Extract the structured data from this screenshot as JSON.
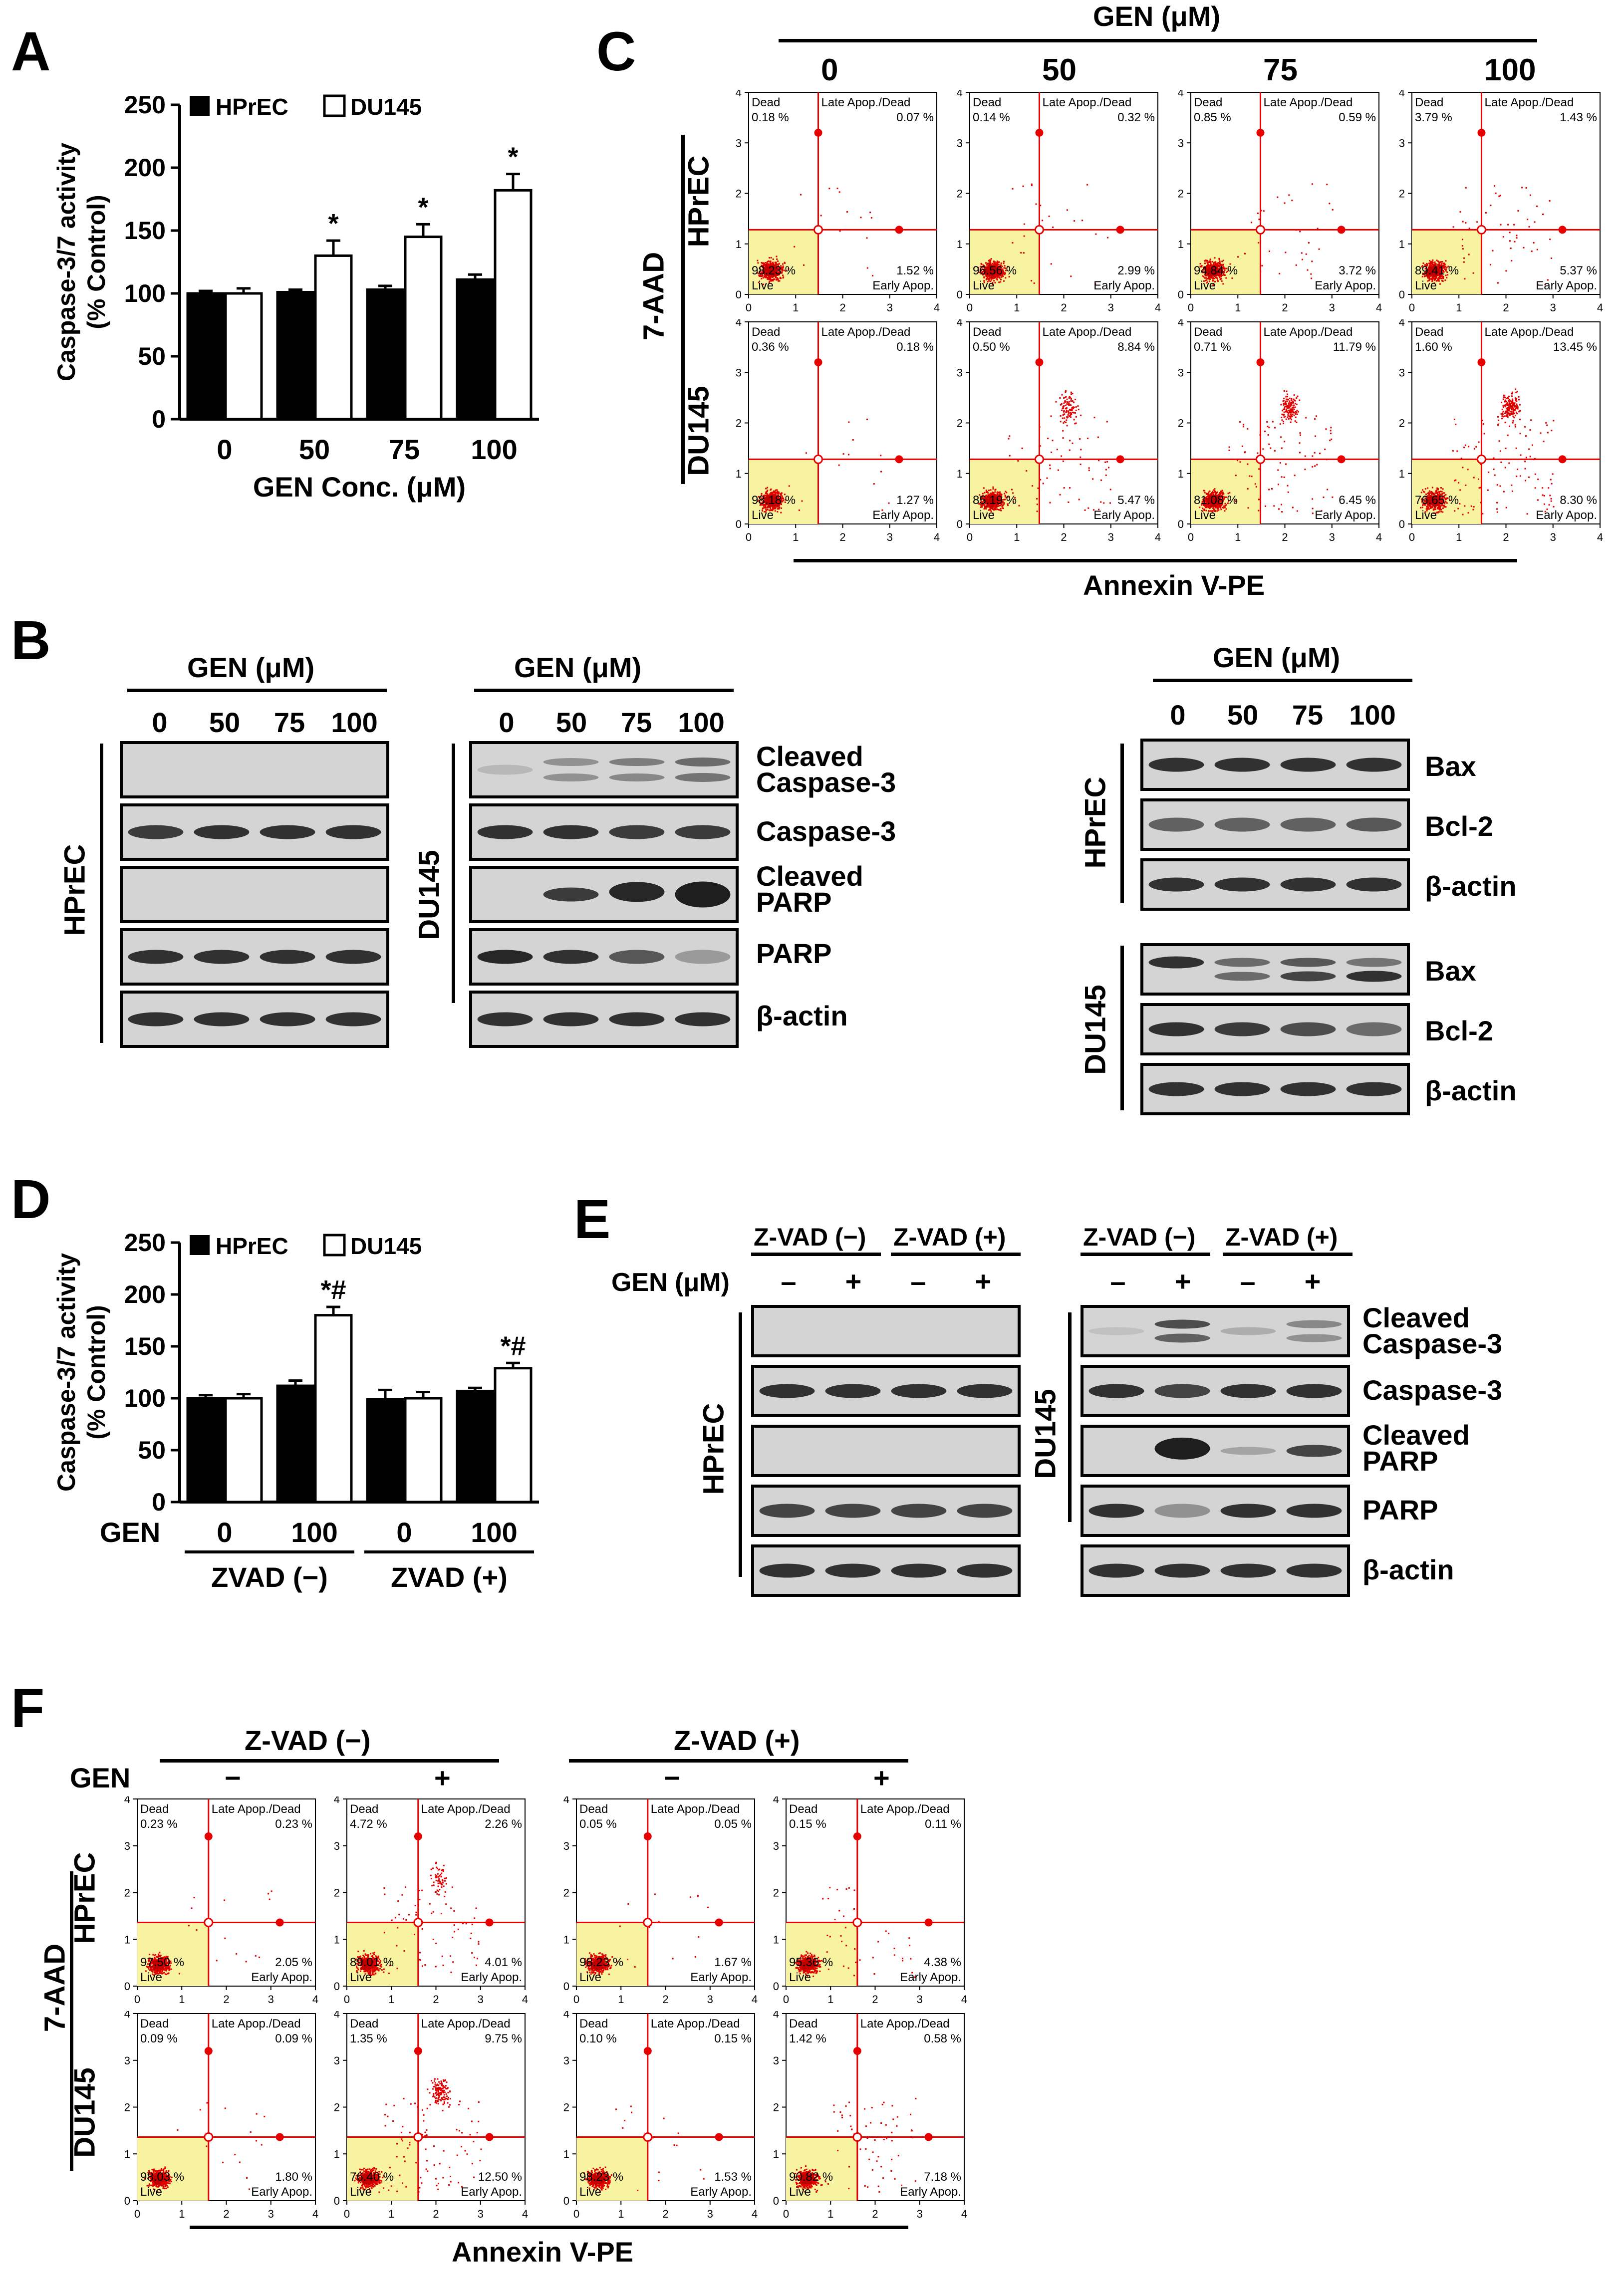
{
  "panels": {
    "A": "A",
    "B": "B",
    "C": "C",
    "D": "D",
    "E": "E",
    "F": "F"
  },
  "colors": {
    "hprec": "#000000",
    "du145": "#ffffff",
    "gate_line": "#e60000",
    "live_gate": "#f7f3a0",
    "dots": "#e00000"
  },
  "chart_data": [
    {
      "id": "A",
      "type": "bar",
      "ylabel": "Caspase-3/7 activity (% Control)",
      "ylabel_line1": "Caspase-3/7 activity",
      "ylabel_line2": "(% Control)",
      "xlabel": "GEN Conc. (μM)",
      "categories": [
        "0",
        "50",
        "75",
        "100"
      ],
      "ylim": [
        0,
        250
      ],
      "yticks": [
        "0",
        "50",
        "100",
        "150",
        "200",
        "250"
      ],
      "series": [
        {
          "name": "HPrEC",
          "values": [
            100,
            101,
            103,
            111
          ],
          "errors": [
            2,
            2,
            3,
            4
          ]
        },
        {
          "name": "DU145",
          "values": [
            100,
            130,
            145,
            182
          ],
          "errors": [
            4,
            12,
            10,
            13
          ]
        }
      ],
      "annotations": [
        "",
        "*",
        "*",
        "*"
      ]
    },
    {
      "id": "D",
      "type": "bar",
      "ylabel": "Caspase-3/7 activity (% Control)",
      "ylabel_line1": "Caspase-3/7 activity",
      "ylabel_line2": "(% Control)",
      "xlabel_prefix": "GEN",
      "categories": [
        "0",
        "100",
        "0",
        "100"
      ],
      "groups": [
        "ZVAD (−)",
        "ZVAD (+)"
      ],
      "ylim": [
        0,
        250
      ],
      "yticks": [
        "0",
        "50",
        "100",
        "150",
        "200",
        "250"
      ],
      "series": [
        {
          "name": "HPrEC",
          "values": [
            100,
            112,
            99,
            107
          ],
          "errors": [
            3,
            5,
            9,
            3
          ]
        },
        {
          "name": "DU145",
          "values": [
            100,
            180,
            100,
            129
          ],
          "errors": [
            4,
            8,
            6,
            5
          ]
        }
      ],
      "annotations": [
        "",
        "*#",
        "",
        "*#"
      ]
    },
    {
      "id": "C",
      "type": "scatter",
      "title": "GEN (μM)",
      "columns": [
        "0",
        "50",
        "75",
        "100"
      ],
      "rows": [
        "HPrEC",
        "DU145"
      ],
      "ylabel": "7-AAD",
      "xlabel": "Annexin V-PE",
      "plots": [
        {
          "dead": "0.18 %",
          "late": "0.07 %",
          "live": "98.23 %",
          "early": "1.52 %"
        },
        {
          "dead": "0.14 %",
          "late": "0.32 %",
          "live": "96.56 %",
          "early": "2.99 %"
        },
        {
          "dead": "0.85 %",
          "late": "0.59 %",
          "live": "94.84 %",
          "early": "3.72 %"
        },
        {
          "dead": "3.79 %",
          "late": "1.43 %",
          "live": "89.41 %",
          "early": "5.37 %"
        },
        {
          "dead": "0.36 %",
          "late": "0.18 %",
          "live": "98.18 %",
          "early": "1.27 %"
        },
        {
          "dead": "0.50 %",
          "late": "8.84 %",
          "live": "85.19 %",
          "early": "5.47 %"
        },
        {
          "dead": "0.71 %",
          "late": "11.79 %",
          "live": "81.08 %",
          "early": "6.45 %"
        },
        {
          "dead": "1.60 %",
          "late": "13.45 %",
          "live": "76.65 %",
          "early": "8.30 %"
        }
      ]
    },
    {
      "id": "F",
      "type": "scatter",
      "groups": [
        "Z-VAD (−)",
        "Z-VAD (+)"
      ],
      "gen_prefix": "GEN",
      "columns": [
        "−",
        "+",
        "−",
        "+"
      ],
      "rows": [
        "HPrEC",
        "DU145"
      ],
      "ylabel": "7-AAD",
      "xlabel": "Annexin V-PE",
      "plots": [
        {
          "dead": "0.23 %",
          "late": "0.23 %",
          "live": "97.50 %",
          "early": "2.05 %"
        },
        {
          "dead": "4.72 %",
          "late": "2.26 %",
          "live": "89.01 %",
          "early": "4.01 %"
        },
        {
          "dead": "0.05 %",
          "late": "0.05 %",
          "live": "98.23 %",
          "early": "1.67 %"
        },
        {
          "dead": "0.15 %",
          "late": "0.11 %",
          "live": "95.36 %",
          "early": "4.38 %"
        },
        {
          "dead": "0.09 %",
          "late": "0.09 %",
          "live": "98.03 %",
          "early": "1.80 %"
        },
        {
          "dead": "1.35 %",
          "late": "9.75 %",
          "live": "76.40 %",
          "early": "12.50 %"
        },
        {
          "dead": "0.10 %",
          "late": "0.15 %",
          "live": "98.23 %",
          "early": "1.53 %"
        },
        {
          "dead": "1.42 %",
          "late": "0.58 %",
          "live": "90.82 %",
          "early": "7.18 %"
        }
      ]
    }
  ],
  "quadrants": {
    "dead": "Dead",
    "late": "Late Apop./Dead",
    "live": "Live",
    "early": "Early Apop."
  },
  "axis_ticks": [
    "0",
    "1",
    "2",
    "3",
    "4"
  ],
  "blots": {
    "gen_header": "GEN (μM)",
    "lanes": [
      "0",
      "50",
      "75",
      "100"
    ],
    "hprec": "HPrEC",
    "du145": "DU145",
    "cleaved_casp3": [
      "Cleaved",
      "Caspase-3"
    ],
    "casp3": "Caspase-3",
    "cleaved_parp": [
      "Cleaved",
      "PARP"
    ],
    "parp": "PARP",
    "actin": "β-actin",
    "bax": "Bax",
    "bcl2": "Bcl-2",
    "zvad_minus": "Z-VAD (−)",
    "zvad_plus": "Z-VAD (+)",
    "gen_uM": "GEN (μM)",
    "minus": "–",
    "plus": "+"
  }
}
